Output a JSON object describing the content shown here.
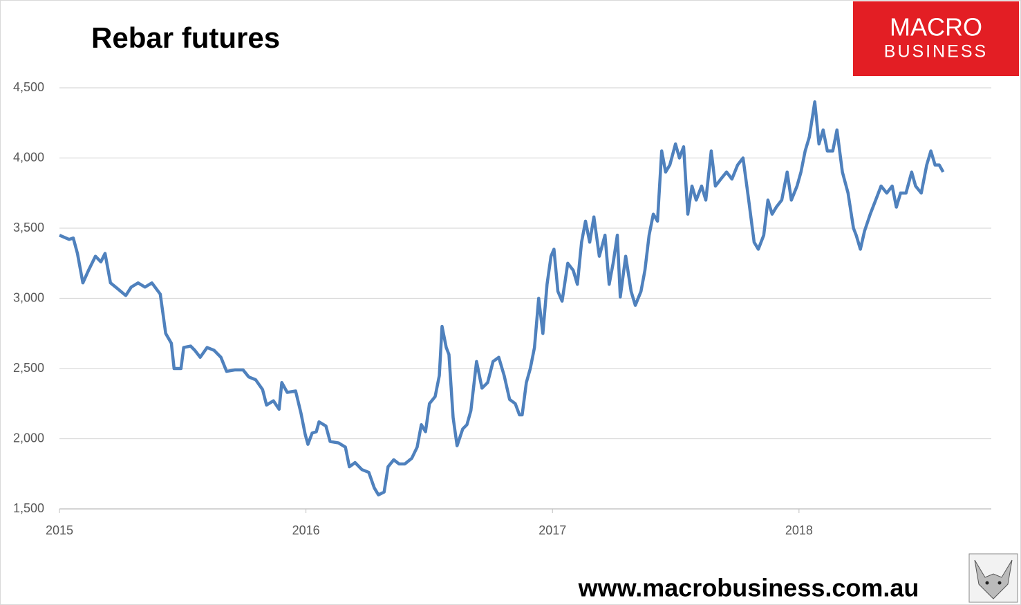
{
  "chart_data": {
    "type": "line",
    "title": "Rebar futures",
    "x": [
      2015.0,
      2015.039,
      2015.056,
      2015.073,
      2015.095,
      2015.118,
      2015.146,
      2015.168,
      2015.185,
      2015.207,
      2015.235,
      2015.269,
      2015.291,
      2015.319,
      2015.347,
      2015.375,
      2015.409,
      2015.431,
      2015.454,
      2015.465,
      2015.493,
      2015.504,
      2015.532,
      2015.549,
      2015.571,
      2015.599,
      2015.627,
      2015.655,
      2015.678,
      2015.711,
      2015.745,
      2015.768,
      2015.796,
      2015.824,
      2015.84,
      2015.868,
      2015.891,
      2015.902,
      2015.924,
      2015.958,
      2015.98,
      2015.997,
      2016.008,
      2016.025,
      2016.042,
      2016.053,
      2016.081,
      2016.098,
      2016.132,
      2016.16,
      2016.176,
      2016.199,
      2016.227,
      2016.255,
      2016.277,
      2016.294,
      2016.317,
      2016.333,
      2016.356,
      2016.378,
      2016.401,
      2016.429,
      2016.451,
      2016.468,
      2016.485,
      2016.501,
      2016.524,
      2016.541,
      2016.552,
      2016.569,
      2016.58,
      2016.597,
      2016.613,
      2016.636,
      2016.653,
      2016.669,
      2016.692,
      2016.714,
      2016.737,
      2016.759,
      2016.782,
      2016.804,
      2016.826,
      2016.849,
      2016.866,
      2016.877,
      2016.894,
      2016.91,
      2016.927,
      2016.944,
      2016.961,
      2016.978,
      2016.994,
      2017.006,
      2017.022,
      2017.039,
      2017.062,
      2017.084,
      2017.101,
      2017.118,
      2017.134,
      2017.151,
      2017.168,
      2017.19,
      2017.213,
      2017.23,
      2017.246,
      2017.263,
      2017.275,
      2017.297,
      2017.319,
      2017.336,
      2017.359,
      2017.375,
      2017.392,
      2017.409,
      2017.426,
      2017.443,
      2017.459,
      2017.476,
      2017.499,
      2017.515,
      2017.532,
      2017.549,
      2017.566,
      2017.583,
      2017.605,
      2017.622,
      2017.644,
      2017.661,
      2017.683,
      2017.706,
      2017.728,
      2017.751,
      2017.773,
      2017.796,
      2017.818,
      2017.835,
      2017.857,
      2017.874,
      2017.891,
      2017.908,
      2017.93,
      2017.952,
      2017.969,
      2017.992,
      2018.008,
      2018.025,
      2018.042,
      2018.064,
      2018.081,
      2018.098,
      2018.115,
      2018.137,
      2018.154,
      2018.176,
      2018.199,
      2018.221,
      2018.232,
      2018.249,
      2018.266,
      2018.289,
      2018.311,
      2018.333,
      2018.356,
      2018.378,
      2018.395,
      2018.412,
      2018.434,
      2018.457,
      2018.473,
      2018.496,
      2018.518,
      2018.535,
      2018.552,
      2018.569,
      2018.585
    ],
    "series": [
      {
        "color": "#4f81bd",
        "values": [
          3450,
          3420,
          3430,
          3320,
          3110,
          3200,
          3300,
          3260,
          3320,
          3110,
          3070,
          3020,
          3080,
          3110,
          3080,
          3110,
          3030,
          2750,
          2680,
          2500,
          2500,
          2650,
          2660,
          2630,
          2580,
          2650,
          2630,
          2580,
          2480,
          2490,
          2490,
          2440,
          2420,
          2350,
          2240,
          2270,
          2210,
          2400,
          2330,
          2340,
          2180,
          2030,
          1960,
          2040,
          2050,
          2120,
          2090,
          1980,
          1970,
          1940,
          1800,
          1830,
          1780,
          1760,
          1650,
          1600,
          1620,
          1800,
          1850,
          1820,
          1820,
          1860,
          1940,
          2100,
          2050,
          2250,
          2300,
          2450,
          2800,
          2650,
          2600,
          2150,
          1950,
          2070,
          2100,
          2200,
          2550,
          2360,
          2400,
          2550,
          2580,
          2450,
          2280,
          2250,
          2170,
          2170,
          2400,
          2500,
          2650,
          3000,
          2750,
          3100,
          3300,
          3350,
          3050,
          2980,
          3250,
          3200,
          3100,
          3400,
          3550,
          3400,
          3580,
          3300,
          3450,
          3100,
          3250,
          3450,
          3010,
          3300,
          3050,
          2950,
          3050,
          3200,
          3450,
          3600,
          3550,
          4050,
          3900,
          3950,
          4100,
          4000,
          4080,
          3600,
          3800,
          3700,
          3800,
          3700,
          4050,
          3800,
          3850,
          3900,
          3850,
          3950,
          4000,
          3700,
          3400,
          3350,
          3450,
          3700,
          3600,
          3650,
          3700,
          3900,
          3700,
          3800,
          3900,
          4050,
          4150,
          4400,
          4100,
          4200,
          4050,
          4050,
          4200,
          3900,
          3750,
          3500,
          3450,
          3350,
          3480,
          3600,
          3700,
          3800,
          3750,
          3800,
          3650,
          3750,
          3750,
          3900,
          3800,
          3750,
          3950,
          4050,
          3950,
          3950,
          3900
        ]
      }
    ],
    "xlim": [
      2015,
      2018.78
    ],
    "xticks": [
      2015,
      2016,
      2017,
      2018
    ],
    "ylim": [
      1500,
      4500
    ],
    "yticks": [
      {
        "value": 1500,
        "label": "1,500"
      },
      {
        "value": 2000,
        "label": "2,000"
      },
      {
        "value": 2500,
        "label": "2,500"
      },
      {
        "value": 3000,
        "label": "3,000"
      },
      {
        "value": 3500,
        "label": "3,500"
      },
      {
        "value": 4000,
        "label": "4,000"
      },
      {
        "value": 4500,
        "label": "4,500"
      }
    ],
    "grid": true
  },
  "branding": {
    "logo": [
      "MACRO",
      "BUSINESS"
    ],
    "website": "www.macrobusiness.com.au"
  }
}
